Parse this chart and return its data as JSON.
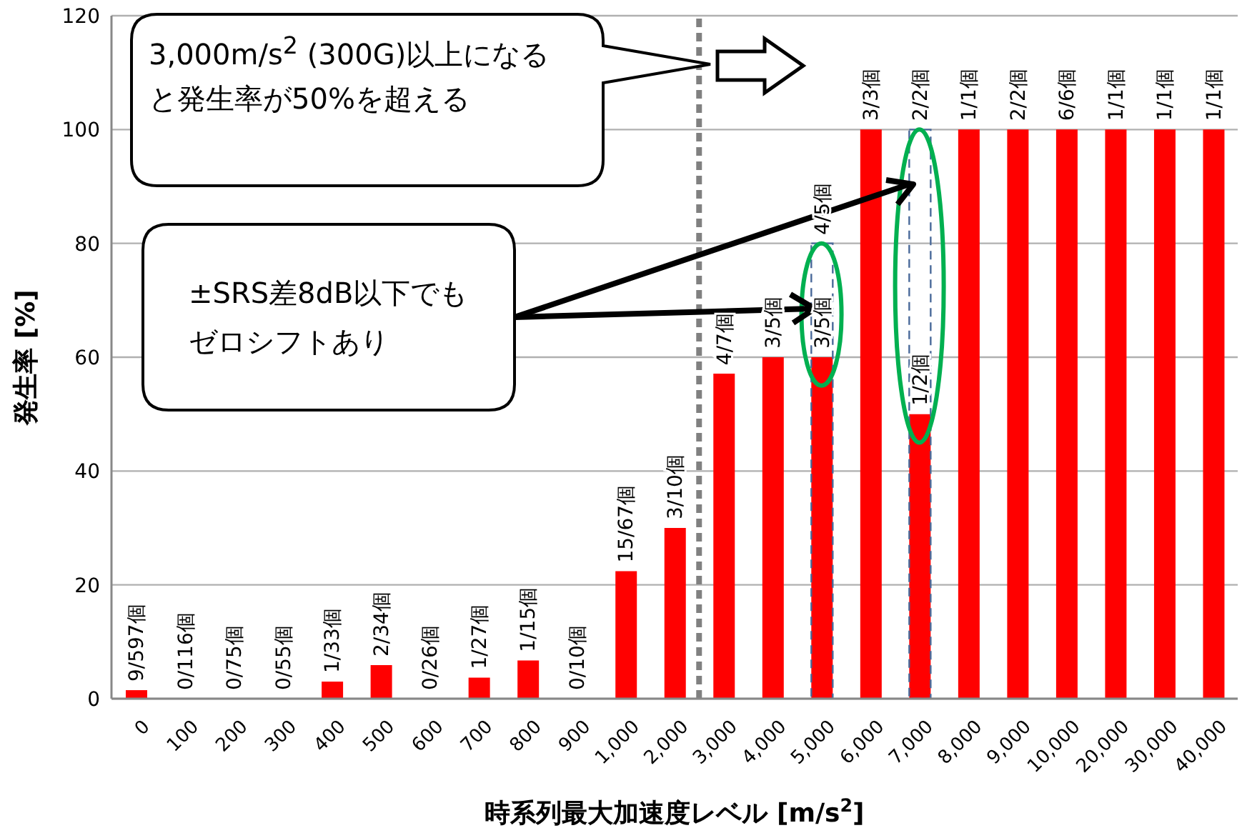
{
  "chart_data": {
    "type": "bar",
    "xlabel": "時系列最大加速度レベル  [m/s$^{2}$]",
    "ylabel": "発生率  [%]",
    "categories": [
      "0",
      "100",
      "200",
      "300",
      "400",
      "500",
      "600",
      "700",
      "800",
      "900",
      "1,000",
      "2,000",
      "3,000",
      "4,000",
      "5,000",
      "6,000",
      "7,000",
      "8,000",
      "9,000",
      "10,000",
      "20,000",
      "30,000",
      "40,000"
    ],
    "series": [
      {
        "color": "#ff0000",
        "values": [
          1.5,
          0,
          0,
          0,
          3,
          5.9,
          0,
          3.7,
          6.7,
          0,
          22.4,
          30,
          57.1,
          60,
          60,
          100,
          50,
          100,
          100,
          100,
          100,
          100,
          100
        ],
        "value_labels": [
          "9/597個",
          "0/116個",
          "0/75個",
          "0/55個",
          "1/33個",
          "2/34個",
          "0/26個",
          "1/27個",
          "1/15個",
          "0/10個",
          "15/67個",
          "3/10個",
          "4/7個",
          "3/5個",
          "3/5個",
          "3/3個",
          "1/2個",
          "1/1個",
          "2/2個",
          "6/6個",
          "1/1個",
          "1/1個",
          "1/1個"
        ]
      },
      {
        "color": "#4a6a9a",
        "line_style": "dashed",
        "values": [
          null,
          null,
          null,
          null,
          null,
          null,
          null,
          null,
          null,
          null,
          null,
          null,
          null,
          null,
          80,
          null,
          100,
          null,
          null,
          null,
          null,
          null,
          null
        ],
        "value_labels": [
          null,
          null,
          null,
          null,
          null,
          null,
          null,
          null,
          null,
          null,
          null,
          null,
          null,
          null,
          "4/5個",
          null,
          "2/2個",
          null,
          null,
          null,
          null,
          null,
          null
        ]
      }
    ],
    "ylim": [
      0,
      120
    ],
    "yticks": [
      0,
      20,
      40,
      60,
      80,
      100,
      120
    ],
    "grid": "y",
    "legend": false,
    "ref_lines": [
      {
        "axis": "x",
        "value": "3,000",
        "color": "#808080",
        "line_style": "dashed"
      }
    ],
    "annotations": [
      "3,000m/s$^{2}$ (300G)以上になると発生率が50%を超える",
      "±SRS差8dB以下でもゼロシフトあり"
    ]
  }
}
